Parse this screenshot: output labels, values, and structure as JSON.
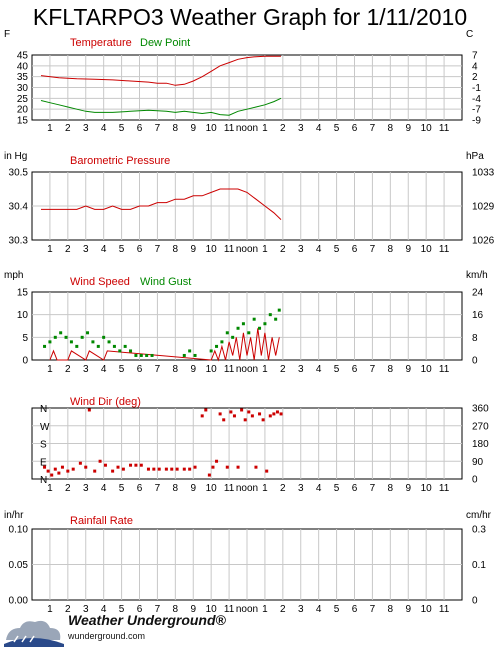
{
  "title": "KFLTARPO3 Weather Graph for 1/11/2010",
  "x_ticks": [
    "1",
    "2",
    "3",
    "4",
    "5",
    "6",
    "7",
    "8",
    "9",
    "10",
    "11",
    "noon",
    "1",
    "2",
    "3",
    "4",
    "5",
    "6",
    "7",
    "8",
    "9",
    "10",
    "11"
  ],
  "footer": {
    "brand": "Weather Underground®",
    "url": "wunderground.com"
  },
  "colors": {
    "red": "#cc0000",
    "green": "#008800",
    "grid": "#c8c8c8"
  },
  "chart_data": [
    {
      "type": "line",
      "title": "Temperature",
      "title2": "Dew Point",
      "unit_left": "F",
      "unit_right": "C",
      "yticks_left": [
        "45",
        "40",
        "35",
        "30",
        "25",
        "20",
        "15"
      ],
      "yticks_right": [
        "7",
        "4",
        "2",
        "-1",
        "-4",
        "-7",
        "-9"
      ],
      "ylim": [
        15,
        45
      ],
      "series": [
        {
          "name": "Temperature",
          "color": "#cc0000",
          "x": [
            0,
            1,
            2,
            3,
            4,
            5,
            6,
            6.5,
            7,
            7.5,
            8,
            8.5,
            9,
            9.5,
            10,
            10.5,
            11,
            11.5,
            12,
            12.5,
            13,
            13.4
          ],
          "values": [
            35.5,
            34.5,
            34,
            33.8,
            33.5,
            33,
            32.5,
            32,
            32,
            31,
            31.5,
            33,
            35,
            37.5,
            40,
            41.5,
            43,
            43.8,
            44.2,
            44.4,
            44.4,
            44.4
          ]
        },
        {
          "name": "Dew Point",
          "color": "#008800",
          "x": [
            0,
            0.5,
            1,
            1.5,
            2,
            2.5,
            3,
            4,
            5,
            6,
            7,
            7.5,
            8,
            8.5,
            9,
            9.5,
            10,
            10.5,
            11,
            11.5,
            12,
            12.5,
            13,
            13.4
          ],
          "values": [
            24,
            23,
            22,
            21,
            20,
            19,
            18.5,
            18.5,
            19,
            19.5,
            19,
            18.5,
            19,
            18.5,
            18,
            18.5,
            17.5,
            17.2,
            19,
            20,
            21,
            22,
            23.5,
            25
          ]
        }
      ]
    },
    {
      "type": "line",
      "title": "Barometric Pressure",
      "unit_left": "in Hg",
      "unit_right": "hPa",
      "yticks_left": [
        "30.5",
        "30.4",
        "30.3"
      ],
      "yticks_right": [
        "1033",
        "1029",
        "1026"
      ],
      "ylim": [
        30.3,
        30.5
      ],
      "series": [
        {
          "name": "Barometric Pressure",
          "color": "#cc0000",
          "x": [
            0,
            1,
            1.5,
            2,
            2.5,
            3,
            3.5,
            4,
            4.5,
            5,
            5.5,
            6,
            6.5,
            7,
            7.5,
            8,
            8.5,
            9,
            9.5,
            10,
            10.5,
            11,
            11.5,
            12,
            12.5,
            13,
            13.4
          ],
          "values": [
            30.39,
            30.39,
            30.39,
            30.39,
            30.4,
            30.39,
            30.39,
            30.4,
            30.39,
            30.39,
            30.4,
            30.4,
            30.41,
            30.41,
            30.42,
            30.42,
            30.43,
            30.43,
            30.44,
            30.45,
            30.45,
            30.45,
            30.44,
            30.42,
            30.4,
            30.38,
            30.36
          ]
        }
      ]
    },
    {
      "type": "line",
      "title": "Wind Speed",
      "title2": "Wind Gust",
      "unit_left": "mph",
      "unit_right": "km/h",
      "yticks_left": [
        "15",
        "10",
        "5",
        "0"
      ],
      "yticks_right": [
        "24",
        "16",
        "8",
        "0"
      ],
      "ylim": [
        0,
        15
      ],
      "series": [
        {
          "name": "Wind Speed",
          "color": "#cc0000",
          "x": [
            0.5,
            0.7,
            0.9,
            1.5,
            1.7,
            2.5,
            2.7,
            3.5,
            3.7,
            9.5,
            9.7,
            9.9,
            10.1,
            10.3,
            10.5,
            10.7,
            10.9,
            11.1,
            11.3,
            11.5,
            11.7,
            11.9,
            12.1,
            12.3,
            12.5,
            12.7,
            12.9,
            13.1,
            13.3
          ],
          "values": [
            0,
            2,
            0,
            0,
            2,
            0,
            2,
            0,
            2,
            0,
            2,
            0,
            3,
            0,
            4,
            1,
            5,
            0,
            6,
            1,
            5,
            0,
            7,
            1,
            6,
            0,
            5,
            1,
            5
          ]
        },
        {
          "name": "Wind Gust",
          "color": "#008800",
          "x": [
            0.2,
            0.5,
            0.8,
            1.1,
            1.4,
            1.7,
            2,
            2.3,
            2.6,
            2.9,
            3.2,
            3.5,
            3.8,
            4.1,
            4.4,
            4.7,
            5,
            5.3,
            5.6,
            5.9,
            6.2,
            8,
            8.3,
            8.6,
            9.5,
            9.8,
            10.1,
            10.4,
            10.7,
            11,
            11.3,
            11.6,
            11.9,
            12.2,
            12.5,
            12.8,
            13.1,
            13.3
          ],
          "values": [
            3,
            4,
            5,
            6,
            5,
            4,
            3,
            5,
            6,
            4,
            3,
            5,
            4,
            3,
            2,
            3,
            2,
            1,
            1,
            1,
            1,
            1,
            2,
            1,
            2,
            3,
            4,
            6,
            5,
            7,
            8,
            6,
            9,
            7,
            8,
            10,
            9,
            11
          ]
        }
      ]
    },
    {
      "type": "scatter",
      "title": "Wind Dir (deg)",
      "unit_left": "",
      "unit_right": "",
      "compass_left": [
        "N",
        "W",
        "S",
        "E",
        "N"
      ],
      "yticks_right": [
        "360",
        "270",
        "180",
        "90",
        "0"
      ],
      "ylim": [
        0,
        360
      ],
      "series": [
        {
          "name": "Wind Dir (deg)",
          "color": "#cc0000",
          "x": [
            0.2,
            0.4,
            0.6,
            0.8,
            1,
            1.2,
            1.5,
            1.8,
            2.2,
            2.5,
            2.7,
            3,
            3.3,
            3.6,
            4,
            4.3,
            4.6,
            5,
            5.3,
            5.6,
            6,
            6.3,
            6.6,
            7,
            7.3,
            7.6,
            8,
            8.3,
            8.6,
            9,
            9.2,
            9.4,
            9.6,
            9.8,
            10,
            10.2,
            10.4,
            10.6,
            10.8,
            11,
            11.2,
            11.4,
            11.6,
            11.8,
            12,
            12.2,
            12.4,
            12.6,
            12.8,
            13,
            13.2,
            13.4
          ],
          "values": [
            60,
            40,
            20,
            50,
            30,
            60,
            40,
            50,
            80,
            60,
            350,
            40,
            90,
            70,
            40,
            60,
            50,
            70,
            70,
            70,
            50,
            50,
            50,
            50,
            50,
            50,
            50,
            50,
            60,
            320,
            350,
            20,
            60,
            90,
            330,
            300,
            60,
            340,
            320,
            60,
            350,
            300,
            340,
            320,
            60,
            330,
            300,
            40,
            320,
            330,
            340,
            330
          ]
        }
      ]
    },
    {
      "type": "line",
      "title": "Rainfall Rate",
      "unit_left": "in/hr",
      "unit_right": "cm/hr",
      "yticks_left": [
        "0.10",
        "0.05",
        "0.00"
      ],
      "yticks_right": [
        "0.3",
        "0.1",
        "0"
      ],
      "ylim": [
        0,
        0.1
      ],
      "series": []
    }
  ]
}
